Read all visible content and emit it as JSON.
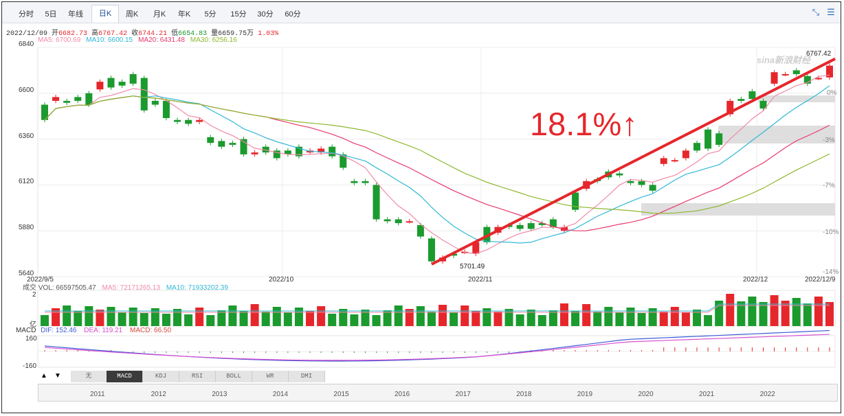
{
  "toolbar": {
    "tabs": [
      {
        "label": "分时",
        "active": false
      },
      {
        "label": "5日",
        "active": false
      },
      {
        "label": "年线",
        "active": false
      },
      {
        "label": "日K",
        "active": true
      },
      {
        "label": "周K",
        "active": false
      },
      {
        "label": "月K",
        "active": false
      },
      {
        "label": "年K",
        "active": false
      },
      {
        "label": "5分",
        "active": false
      },
      {
        "label": "15分",
        "active": false
      },
      {
        "label": "30分",
        "active": false
      },
      {
        "label": "60分",
        "active": false
      }
    ],
    "icons": [
      "shrink-icon",
      "menu-icon"
    ]
  },
  "info": {
    "date": "2022/12/09",
    "open_label": "开",
    "open": "6682.73",
    "high_label": "高",
    "high": "6767.42",
    "close_label": "收",
    "close": "6744.21",
    "low_label": "低",
    "low": "6654.83",
    "vol_label": "量",
    "vol": "6659.75万",
    "change": "1.03%"
  },
  "ma_legend": [
    {
      "label": "MA5: 6700.69",
      "color": "#f08aa5"
    },
    {
      "label": "MA10: 6600.15",
      "color": "#2fb8d6"
    },
    {
      "label": "MA20: 6431.48",
      "color": "#e8386b"
    },
    {
      "label": "MA30: 6256.16",
      "color": "#8db82e"
    }
  ],
  "annotation": "18.1%↑",
  "watermark": "sina新浪财经",
  "chart_data": {
    "type": "candlestick",
    "y_ticks": [
      "6840",
      "6600",
      "6360",
      "6120",
      "5880",
      "5640"
    ],
    "ylim": [
      5640,
      6840
    ],
    "pct_ticks": [
      "0%",
      "-3%",
      "-7%",
      "-10%",
      "-14%"
    ],
    "x_labels": [
      "2022/9/5",
      "2022/10",
      "2022/11",
      "2022/12",
      "2022/12/9"
    ],
    "low_label": "5701.49",
    "high_label": "6767.42",
    "candles": [
      [
        6540,
        6460
      ],
      [
        6560,
        6580
      ],
      [
        6560,
        6550
      ],
      [
        6580,
        6560
      ],
      [
        6600,
        6540
      ],
      [
        6620,
        6660
      ],
      [
        6680,
        6630
      ],
      [
        6660,
        6640
      ],
      [
        6700,
        6650
      ],
      [
        6680,
        6510
      ],
      [
        6560,
        6540
      ],
      [
        6560,
        6470
      ],
      [
        6460,
        6450
      ],
      [
        6460,
        6440
      ],
      [
        6450,
        6460
      ],
      [
        6370,
        6340
      ],
      [
        6350,
        6320
      ],
      [
        6340,
        6330
      ],
      [
        6360,
        6280
      ],
      [
        6280,
        6290
      ],
      [
        6320,
        6290
      ],
      [
        6300,
        6260
      ],
      [
        6300,
        6280
      ],
      [
        6320,
        6270
      ],
      [
        6290,
        6300
      ],
      [
        6290,
        6310
      ],
      [
        6320,
        6270
      ],
      [
        6280,
        6210
      ],
      [
        6140,
        6130
      ],
      [
        6140,
        6130
      ],
      [
        6120,
        5940
      ],
      [
        5940,
        5930
      ],
      [
        5940,
        5920
      ],
      [
        5930,
        5930
      ],
      [
        5910,
        5850
      ],
      [
        5840,
        5720
      ],
      [
        5720,
        5740
      ],
      [
        5760,
        5750
      ],
      [
        5770,
        5770
      ],
      [
        5760,
        5820
      ],
      [
        5900,
        5820
      ],
      [
        5870,
        5900
      ],
      [
        5910,
        5900
      ],
      [
        5910,
        5890
      ],
      [
        5920,
        5890
      ],
      [
        5920,
        5910
      ],
      [
        5940,
        5900
      ],
      [
        5880,
        5900
      ],
      [
        6080,
        5990
      ],
      [
        6100,
        6140
      ],
      [
        6150,
        6140
      ],
      [
        6190,
        6160
      ],
      [
        6180,
        6170
      ],
      [
        6140,
        6130
      ],
      [
        6140,
        6120
      ],
      [
        6120,
        6090
      ],
      [
        6230,
        6260
      ],
      [
        6250,
        6250
      ],
      [
        6260,
        6300
      ],
      [
        6340,
        6300
      ],
      [
        6410,
        6310
      ],
      [
        6390,
        6330
      ],
      [
        6490,
        6560
      ],
      [
        6570,
        6560
      ],
      [
        6610,
        6570
      ],
      [
        6560,
        6520
      ],
      [
        6650,
        6710
      ],
      [
        6700,
        6700
      ],
      [
        6720,
        6700
      ],
      [
        6690,
        6650
      ],
      [
        6680,
        6680
      ],
      [
        6682.73,
        6744.21
      ]
    ],
    "ma_series": [
      {
        "name": "MA5",
        "color": "#f08aa5"
      },
      {
        "name": "MA10",
        "color": "#2fb8d6"
      },
      {
        "name": "MA20",
        "color": "#e8386b"
      },
      {
        "name": "MA30",
        "color": "#8db82e"
      }
    ],
    "volume": {
      "legend": {
        "vol": "成交 VOL: 66597505.47",
        "ma5": "MA5: 72171265.13",
        "ma10": "MA10: 71933202.39"
      },
      "y_top": "2",
      "unit": "亿"
    },
    "macd": {
      "legend": {
        "label": "MACD",
        "dif": "DIF: 152.46",
        "dea": "DEA: 119.21",
        "macd": "MACD: 66.50"
      },
      "y_ticks": [
        "160",
        "-160"
      ]
    }
  },
  "indicator_tabs": [
    "无",
    "MACD",
    "KDJ",
    "RSI",
    "BOLL",
    "WR",
    "DMI"
  ],
  "indicator_active": "MACD",
  "navigator_years": [
    "2011",
    "2012",
    "2013",
    "2014",
    "2015",
    "2016",
    "2017",
    "2018",
    "2019",
    "2020",
    "2021",
    "2022"
  ],
  "colors": {
    "up": "#e5272c",
    "down": "#1b9a2e",
    "trendline": "#e5272c"
  }
}
